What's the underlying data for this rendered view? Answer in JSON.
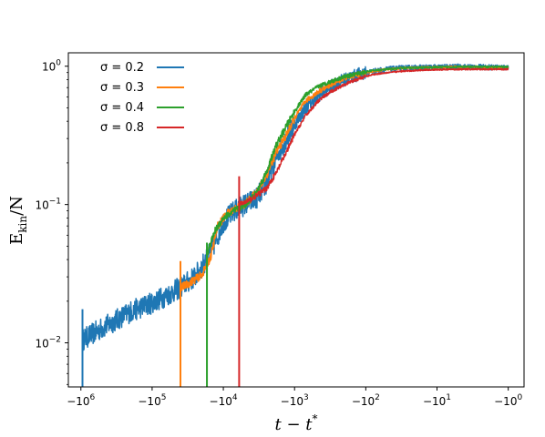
{
  "chart_data": {
    "type": "line",
    "title": "",
    "xlabel": {
      "main": "t − t",
      "sup": "*"
    },
    "ylabel": {
      "main": "E",
      "sub": "kin",
      "tail": "/N"
    },
    "x_scale": "symlog-negative",
    "y_scale": "log",
    "xlim": [
      -1500000,
      -0.6
    ],
    "ylim": [
      0.0048,
      1.25
    ],
    "x_ticks": [
      {
        "value": -1000000,
        "base": "−10",
        "exp": "6"
      },
      {
        "value": -100000,
        "base": "−10",
        "exp": "5"
      },
      {
        "value": -10000,
        "base": "−10",
        "exp": "4"
      },
      {
        "value": -1000,
        "base": "−10",
        "exp": "3"
      },
      {
        "value": -100,
        "base": "−10",
        "exp": "2"
      },
      {
        "value": -10,
        "base": "−10",
        "exp": "1"
      },
      {
        "value": -1,
        "base": "−10",
        "exp": "0"
      }
    ],
    "y_ticks": [
      {
        "value": 0.01,
        "base": "10",
        "exp": "−2"
      },
      {
        "value": 0.1,
        "base": "10",
        "exp": "−1"
      },
      {
        "value": 1,
        "base": "10",
        "exp": "0"
      }
    ],
    "legend": {
      "position": "top-left"
    },
    "series": [
      {
        "name": "σ = 0.2",
        "color": "#1f77b4",
        "spike": {
          "x": -950000,
          "y_from": 0.0048,
          "y_to": 0.0175
        },
        "noise": 0.16,
        "points": [
          [
            -950000,
            0.0105
          ],
          [
            -500000,
            0.0128
          ],
          [
            -200000,
            0.0168
          ],
          [
            -100000,
            0.0195
          ],
          [
            -60000,
            0.0222
          ],
          [
            -40000,
            0.0252
          ],
          [
            -25000,
            0.03
          ],
          [
            -15000,
            0.045
          ],
          [
            -10000,
            0.075
          ],
          [
            -7000,
            0.09
          ],
          [
            -5000,
            0.1
          ],
          [
            -3500,
            0.11
          ],
          [
            -2500,
            0.14
          ],
          [
            -1800,
            0.22
          ],
          [
            -1300,
            0.3
          ],
          [
            -1000,
            0.38
          ],
          [
            -700,
            0.5
          ],
          [
            -450,
            0.62
          ],
          [
            -300,
            0.72
          ],
          [
            -200,
            0.8
          ],
          [
            -120,
            0.88
          ],
          [
            -80,
            0.92
          ],
          [
            -50,
            0.95
          ],
          [
            -30,
            0.97
          ],
          [
            -15,
            0.98
          ],
          [
            -5,
            0.99
          ],
          [
            -1,
            0.98
          ]
        ]
      },
      {
        "name": "σ = 0.3",
        "color": "#ff7f0e",
        "spike": {
          "x": -40000,
          "y_from": 0.0048,
          "y_to": 0.039
        },
        "noise": 0.06,
        "points": [
          [
            -40000,
            0.025
          ],
          [
            -30000,
            0.027
          ],
          [
            -20000,
            0.031
          ],
          [
            -15000,
            0.042
          ],
          [
            -12000,
            0.07
          ],
          [
            -9000,
            0.085
          ],
          [
            -7000,
            0.093
          ],
          [
            -5000,
            0.1
          ],
          [
            -3500,
            0.12
          ],
          [
            -2500,
            0.16
          ],
          [
            -1800,
            0.24
          ],
          [
            -1300,
            0.32
          ],
          [
            -1000,
            0.42
          ],
          [
            -700,
            0.56
          ],
          [
            -450,
            0.66
          ],
          [
            -300,
            0.74
          ],
          [
            -200,
            0.82
          ],
          [
            -120,
            0.88
          ],
          [
            -80,
            0.92
          ],
          [
            -50,
            0.95
          ],
          [
            -30,
            0.97
          ],
          [
            -15,
            0.98
          ],
          [
            -5,
            0.99
          ],
          [
            -1,
            0.98
          ]
        ]
      },
      {
        "name": "σ = 0.4",
        "color": "#2ca02c",
        "spike": {
          "x": -17000,
          "y_from": 0.0048,
          "y_to": 0.053
        },
        "noise": 0.05,
        "points": [
          [
            -17000,
            0.044
          ],
          [
            -13000,
            0.065
          ],
          [
            -10000,
            0.08
          ],
          [
            -7000,
            0.09
          ],
          [
            -5000,
            0.1
          ],
          [
            -3500,
            0.12
          ],
          [
            -2500,
            0.17
          ],
          [
            -1800,
            0.27
          ],
          [
            -1300,
            0.37
          ],
          [
            -1000,
            0.47
          ],
          [
            -700,
            0.62
          ],
          [
            -450,
            0.72
          ],
          [
            -300,
            0.78
          ],
          [
            -200,
            0.84
          ],
          [
            -120,
            0.89
          ],
          [
            -80,
            0.93
          ],
          [
            -50,
            0.95
          ],
          [
            -30,
            0.97
          ],
          [
            -15,
            0.98
          ],
          [
            -5,
            0.99
          ],
          [
            -1,
            0.99
          ]
        ]
      },
      {
        "name": "σ = 0.8",
        "color": "#d62728",
        "spike": {
          "x": -6000,
          "y_from": 0.0048,
          "y_to": 0.16
        },
        "noise": 0.04,
        "points": [
          [
            -6000,
            0.1
          ],
          [
            -4500,
            0.106
          ],
          [
            -3500,
            0.115
          ],
          [
            -2500,
            0.13
          ],
          [
            -1800,
            0.17
          ],
          [
            -1300,
            0.24
          ],
          [
            -1000,
            0.32
          ],
          [
            -700,
            0.44
          ],
          [
            -450,
            0.57
          ],
          [
            -300,
            0.66
          ],
          [
            -200,
            0.74
          ],
          [
            -120,
            0.82
          ],
          [
            -80,
            0.87
          ],
          [
            -50,
            0.9
          ],
          [
            -30,
            0.92
          ],
          [
            -15,
            0.94
          ],
          [
            -5,
            0.95
          ],
          [
            -1,
            0.95
          ]
        ]
      }
    ]
  }
}
